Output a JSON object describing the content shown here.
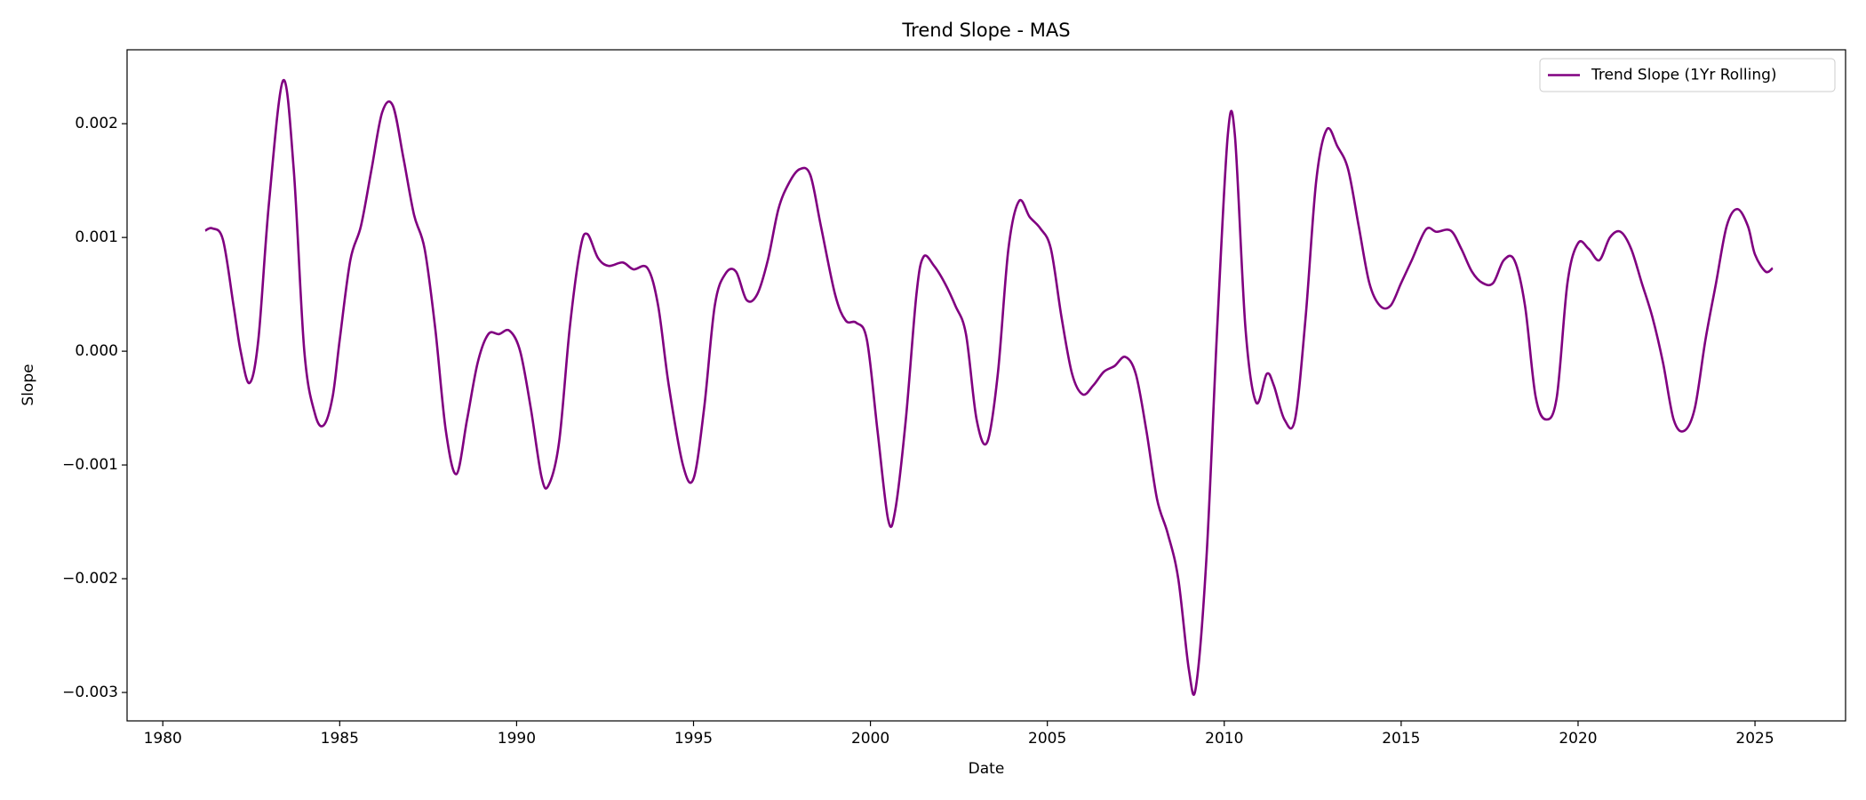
{
  "chart_data": {
    "type": "line",
    "title": "Trend Slope - MAS",
    "x_label": "Date",
    "y_label": "Slope",
    "x": [
      1981.2,
      1981.4,
      1981.7,
      1982.0,
      1982.2,
      1982.45,
      1982.7,
      1983.0,
      1983.4,
      1983.7,
      1984.0,
      1984.3,
      1984.55,
      1984.8,
      1985.0,
      1985.3,
      1985.6,
      1985.9,
      1986.2,
      1986.5,
      1986.8,
      1987.1,
      1987.4,
      1987.7,
      1988.0,
      1988.3,
      1988.6,
      1988.9,
      1989.2,
      1989.5,
      1989.8,
      1990.1,
      1990.4,
      1990.7,
      1990.9,
      1991.2,
      1991.5,
      1991.8,
      1992.0,
      1992.3,
      1992.6,
      1993.0,
      1993.3,
      1993.7,
      1994.0,
      1994.3,
      1994.7,
      1995.0,
      1995.3,
      1995.6,
      1995.9,
      1996.2,
      1996.5,
      1996.8,
      1997.1,
      1997.4,
      1997.7,
      1998.0,
      1998.3,
      1998.6,
      1999.0,
      1999.3,
      1999.6,
      1999.9,
      2000.2,
      2000.5,
      2000.7,
      2001.0,
      2001.3,
      2001.5,
      2001.8,
      2002.1,
      2002.4,
      2002.7,
      2003.0,
      2003.3,
      2003.6,
      2003.9,
      2004.2,
      2004.5,
      2004.8,
      2005.1,
      2005.4,
      2005.7,
      2006.0,
      2006.3,
      2006.6,
      2006.9,
      2007.2,
      2007.5,
      2007.8,
      2008.1,
      2008.4,
      2008.7,
      2009.0,
      2009.2,
      2009.5,
      2009.8,
      2010.1,
      2010.3,
      2010.6,
      2010.9,
      2011.2,
      2011.4,
      2011.7,
      2012.0,
      2012.3,
      2012.6,
      2012.9,
      2013.2,
      2013.5,
      2013.8,
      2014.1,
      2014.4,
      2014.7,
      2015.0,
      2015.3,
      2015.7,
      2016.0,
      2016.4,
      2016.7,
      2017.0,
      2017.3,
      2017.6,
      2017.9,
      2018.2,
      2018.5,
      2018.8,
      2019.1,
      2019.4,
      2019.7,
      2020.0,
      2020.3,
      2020.6,
      2020.9,
      2021.2,
      2021.5,
      2021.8,
      2022.1,
      2022.4,
      2022.7,
      2023.0,
      2023.3,
      2023.6,
      2023.9,
      2024.2,
      2024.5,
      2024.8,
      2025.0,
      2025.3,
      2025.5
    ],
    "series": [
      {
        "name": "Trend Slope (1Yr Rolling)",
        "color": "#800080",
        "values": [
          0.00106,
          0.00108,
          0.00098,
          0.0004,
          0.0,
          -0.00028,
          0.0001,
          0.0013,
          0.00238,
          0.0016,
          0.0,
          -0.00055,
          -0.00065,
          -0.0004,
          0.0001,
          0.0008,
          0.0011,
          0.0016,
          0.0021,
          0.00216,
          0.0017,
          0.0012,
          0.0009,
          0.0002,
          -0.0007,
          -0.00108,
          -0.0006,
          -0.0001,
          0.00015,
          0.00015,
          0.00018,
          0.0,
          -0.0005,
          -0.0011,
          -0.00118,
          -0.0008,
          0.0002,
          0.0009,
          0.00103,
          0.00082,
          0.00075,
          0.00078,
          0.00072,
          0.00073,
          0.0004,
          -0.0003,
          -0.001,
          -0.00112,
          -0.0005,
          0.0004,
          0.00068,
          0.0007,
          0.00045,
          0.0005,
          0.0008,
          0.00125,
          0.00148,
          0.0016,
          0.00155,
          0.0011,
          0.0005,
          0.00027,
          0.00025,
          0.0001,
          -0.0007,
          -0.00148,
          -0.0014,
          -0.0006,
          0.0005,
          0.00083,
          0.00075,
          0.0006,
          0.0004,
          0.00015,
          -0.0006,
          -0.0008,
          -0.0002,
          0.0009,
          0.00132,
          0.00118,
          0.00108,
          0.0009,
          0.0003,
          -0.0002,
          -0.00038,
          -0.0003,
          -0.00018,
          -0.00013,
          -5e-05,
          -0.0002,
          -0.0007,
          -0.0013,
          -0.0016,
          -0.002,
          -0.0028,
          -0.00295,
          -0.0018,
          0.0002,
          0.0019,
          0.0019,
          0.0002,
          -0.00045,
          -0.0002,
          -0.0003,
          -0.0006,
          -0.0006,
          0.0003,
          0.0015,
          0.00195,
          0.0018,
          0.0016,
          0.0011,
          0.0006,
          0.0004,
          0.0004,
          0.0006,
          0.0008,
          0.00107,
          0.00105,
          0.00106,
          0.0009,
          0.0007,
          0.0006,
          0.0006,
          0.0008,
          0.0008,
          0.0004,
          -0.0004,
          -0.0006,
          -0.0004,
          0.0006,
          0.00095,
          0.0009,
          0.0008,
          0.001,
          0.00105,
          0.0009,
          0.0006,
          0.0003,
          -0.0001,
          -0.0006,
          -0.0007,
          -0.0005,
          0.0001,
          0.0006,
          0.0011,
          0.00125,
          0.0011,
          0.00085,
          0.0007,
          0.00073
        ]
      }
    ],
    "xlim": [
      1978.99,
      2027.56
    ],
    "xticks": [
      1980,
      1985,
      1990,
      1995,
      2000,
      2005,
      2010,
      2015,
      2020,
      2025
    ],
    "ylim": [
      -0.00325,
      0.00265
    ],
    "yticks": [
      {
        "value": -0.003,
        "label": "−0.003"
      },
      {
        "value": -0.002,
        "label": "−0.002"
      },
      {
        "value": -0.001,
        "label": "−0.001"
      },
      {
        "value": 0,
        "label": "0.000"
      },
      0.001,
      0.002
    ],
    "grid": false,
    "legend": "upper right"
  }
}
